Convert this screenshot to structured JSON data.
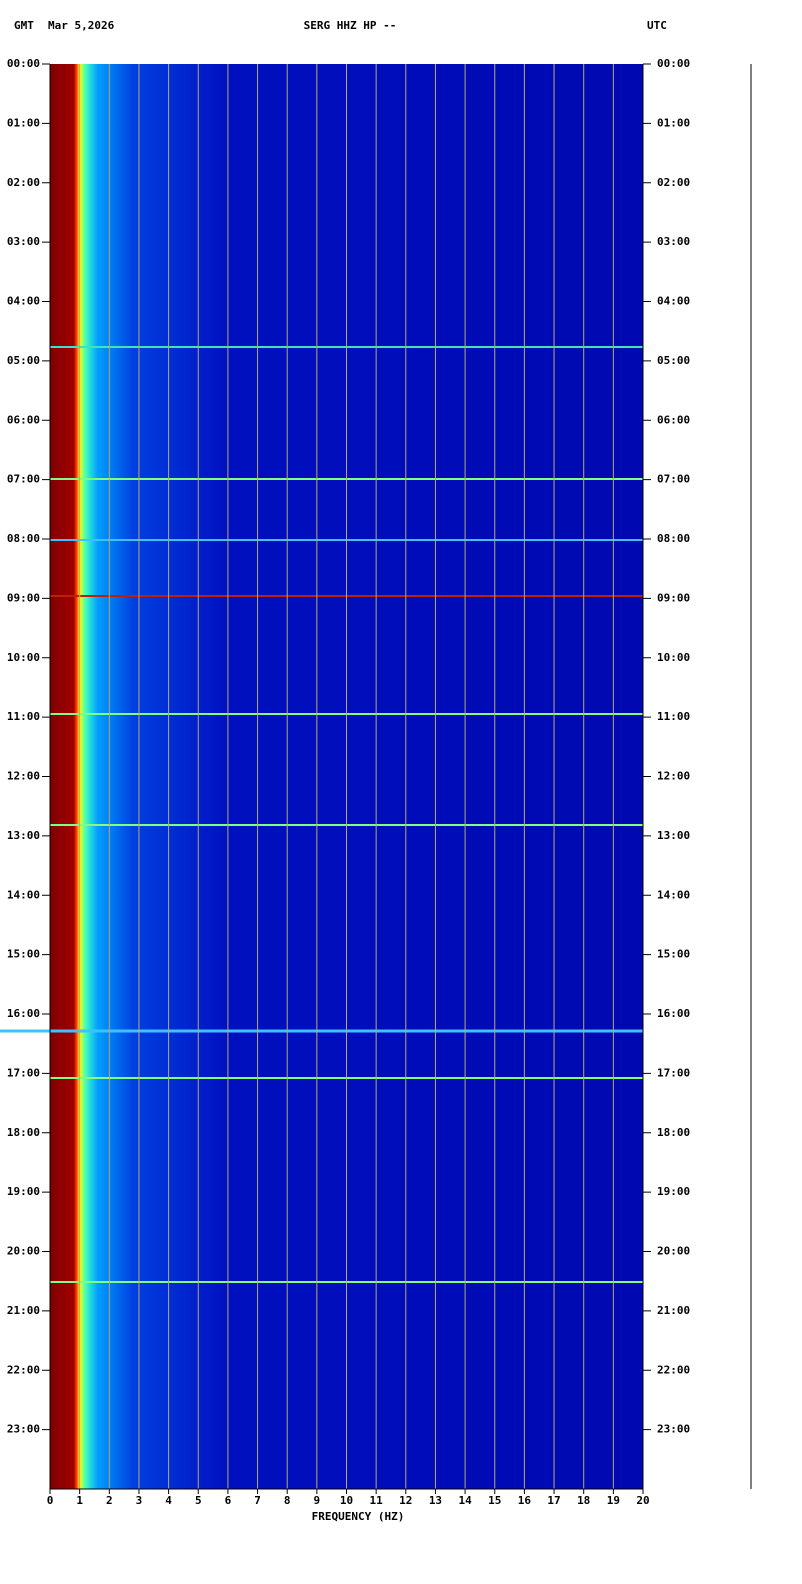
{
  "chart_data": {
    "type": "spectrogram",
    "title": "SERG HHZ HP --",
    "date": "Mar 5,2026",
    "left_zone": "GMT",
    "right_zone": "UTC",
    "xlabel": "FREQUENCY (HZ)",
    "xlim": [
      0,
      20
    ],
    "xticks": [
      0,
      1,
      2,
      3,
      4,
      5,
      6,
      7,
      8,
      9,
      10,
      11,
      12,
      13,
      14,
      15,
      16,
      17,
      18,
      19,
      20
    ],
    "ylim": [
      0,
      24
    ],
    "yticks": [
      {
        "value": 0,
        "label": "00:00"
      },
      {
        "value": 1,
        "label": "01:00"
      },
      {
        "value": 2,
        "label": "02:00"
      },
      {
        "value": 3,
        "label": "03:00"
      },
      {
        "value": 4,
        "label": "04:00"
      },
      {
        "value": 5,
        "label": "05:00"
      },
      {
        "value": 6,
        "label": "06:00"
      },
      {
        "value": 7,
        "label": "07:00"
      },
      {
        "value": 8,
        "label": "08:00"
      },
      {
        "value": 9,
        "label": "09:00"
      },
      {
        "value": 10,
        "label": "10:00"
      },
      {
        "value": 11,
        "label": "11:00"
      },
      {
        "value": 12,
        "label": "12:00"
      },
      {
        "value": 13,
        "label": "13:00"
      },
      {
        "value": 14,
        "label": "14:00"
      },
      {
        "value": 15,
        "label": "15:00"
      },
      {
        "value": 16,
        "label": "16:00"
      },
      {
        "value": 17,
        "label": "17:00"
      },
      {
        "value": 18,
        "label": "18:00"
      },
      {
        "value": 19,
        "label": "19:00"
      },
      {
        "value": 20,
        "label": "20:00"
      },
      {
        "value": 21,
        "label": "21:00"
      },
      {
        "value": 22,
        "label": "22:00"
      },
      {
        "value": 23,
        "label": "23:00"
      }
    ],
    "grid": true
  }
}
